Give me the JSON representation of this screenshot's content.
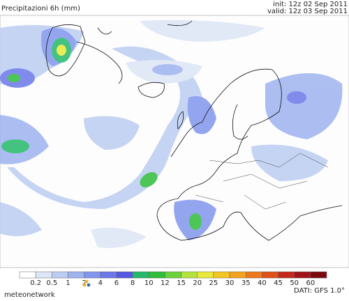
{
  "header": {
    "title": "Precipitazioni 6h (mm)",
    "init": "init: 12z 02 Sep 2011",
    "valid": "valid: 12z 03 Sep 2011"
  },
  "legend": {
    "ticks": [
      "0.2",
      "0.5",
      "1",
      "2",
      "4",
      "6",
      "8",
      "10",
      "12",
      "15",
      "20",
      "25",
      "30",
      "35",
      "40",
      "45",
      "50",
      "60"
    ],
    "colors": [
      "#ffffff",
      "#dde6f7",
      "#bccdf2",
      "#9fb3ef",
      "#8296ee",
      "#6b78ea",
      "#5558e0",
      "#24b86a",
      "#2fbd3b",
      "#6bd23b",
      "#b4e43c",
      "#e9e93a",
      "#f3c522",
      "#f3a21f",
      "#ec7a1d",
      "#e05019",
      "#c5281a",
      "#a2121a",
      "#7a0a10"
    ]
  },
  "footer": {
    "logo": "meteonetwork",
    "source": "DATI: GFS 1.0°"
  }
}
